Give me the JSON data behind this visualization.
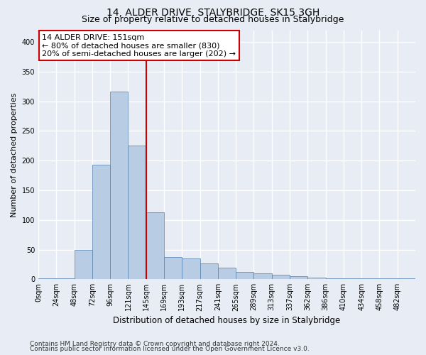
{
  "title1": "14, ALDER DRIVE, STALYBRIDGE, SK15 3GH",
  "title2": "Size of property relative to detached houses in Stalybridge",
  "xlabel": "Distribution of detached houses by size in Stalybridge",
  "ylabel": "Number of detached properties",
  "footer1": "Contains HM Land Registry data © Crown copyright and database right 2024.",
  "footer2": "Contains public sector information licensed under the Open Government Licence v3.0.",
  "categories": [
    "0sqm",
    "24sqm",
    "48sqm",
    "72sqm",
    "96sqm",
    "121sqm",
    "145sqm",
    "169sqm",
    "193sqm",
    "217sqm",
    "241sqm",
    "265sqm",
    "289sqm",
    "313sqm",
    "337sqm",
    "362sqm",
    "386sqm",
    "410sqm",
    "434sqm",
    "458sqm",
    "482sqm"
  ],
  "bar_values": [
    1,
    1,
    50,
    193,
    316,
    225,
    113,
    37,
    35,
    27,
    20,
    12,
    10,
    7,
    5,
    3,
    2,
    1,
    1,
    1,
    1
  ],
  "bar_color": "#b8cce4",
  "bar_edge_color": "#5080b0",
  "property_line_x": 6.0,
  "annotation_text1": "14 ALDER DRIVE: 151sqm",
  "annotation_text2": "← 80% of detached houses are smaller (830)",
  "annotation_text3": "20% of semi-detached houses are larger (202) →",
  "ylim": [
    0,
    420
  ],
  "yticks": [
    0,
    50,
    100,
    150,
    200,
    250,
    300,
    350,
    400
  ],
  "bg_color": "#e8edf5",
  "plot_bg_color": "#e8edf5",
  "grid_color": "white",
  "annotation_box_color": "white",
  "annotation_box_edge": "#cc0000",
  "vline_color": "#cc0000",
  "title1_fontsize": 10,
  "title2_fontsize": 9,
  "ylabel_fontsize": 8,
  "xlabel_fontsize": 8.5,
  "tick_fontsize": 7,
  "annotation_fontsize": 8,
  "footer_fontsize": 6.5
}
